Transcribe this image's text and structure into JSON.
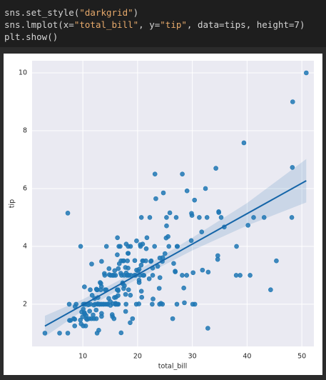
{
  "code": [
    [
      "sns.set_style(",
      "\"darkgrid\"",
      ")"
    ],
    [
      "sns.lmplot(x=",
      "\"total_bill\"",
      ", y=",
      "\"tip\"",
      ", data=tips, height=7)"
    ],
    [
      "plt.show()"
    ]
  ],
  "chart_data": {
    "type": "scatter",
    "xlabel": "total_bill",
    "ylabel": "tip",
    "color": "#1f77b4",
    "grid": true,
    "xlim": [
      0.73,
      52.2
    ],
    "ylim": [
      0.54,
      10.42
    ],
    "xticks": [
      10,
      20,
      30,
      40,
      50
    ],
    "yticks": [
      2,
      4,
      6,
      8,
      10
    ],
    "x": [
      16.99,
      10.34,
      21.01,
      23.68,
      24.59,
      25.29,
      8.77,
      26.88,
      15.04,
      14.78,
      10.27,
      35.26,
      15.42,
      18.43,
      14.83,
      21.58,
      10.33,
      16.29,
      16.97,
      20.65,
      17.92,
      20.29,
      15.77,
      39.42,
      19.82,
      17.81,
      13.37,
      12.69,
      21.7,
      19.65,
      9.55,
      18.35,
      15.06,
      20.69,
      17.78,
      24.06,
      16.31,
      16.93,
      18.69,
      31.27,
      16.04,
      17.46,
      13.94,
      9.68,
      30.4,
      18.29,
      22.23,
      32.4,
      28.55,
      18.04,
      12.54,
      10.29,
      34.81,
      9.94,
      25.56,
      19.49,
      38.01,
      26.41,
      11.24,
      48.27,
      20.29,
      13.81,
      11.02,
      18.29,
      17.59,
      20.08,
      16.45,
      3.07,
      20.23,
      15.01,
      12.02,
      17.07,
      26.86,
      25.28,
      14.73,
      10.51,
      17.92,
      27.2,
      22.76,
      17.29,
      19.44,
      16.66,
      10.07,
      32.68,
      15.98,
      34.83,
      13.03,
      18.28,
      24.71,
      21.16,
      28.97,
      22.49,
      5.75,
      16.32,
      22.75,
      40.17,
      27.28,
      12.03,
      21.01,
      12.46,
      11.35,
      15.38,
      44.3,
      22.42,
      20.92,
      15.36,
      20.49,
      25.21,
      18.24,
      14.31,
      14.0,
      7.25,
      38.07,
      23.95,
      25.71,
      17.31,
      29.93,
      10.65,
      12.43,
      24.08,
      11.69,
      13.42,
      14.26,
      15.95,
      12.48,
      29.8,
      8.52,
      14.52,
      11.38,
      22.82,
      19.08,
      20.27,
      11.17,
      12.26,
      18.26,
      8.51,
      10.33,
      14.15,
      16.0,
      13.16,
      17.47,
      34.3,
      41.19,
      27.05,
      16.43,
      8.35,
      18.64,
      11.87,
      9.78,
      7.51,
      14.07,
      13.13,
      17.26,
      24.55,
      19.77,
      29.85,
      48.17,
      25.0,
      13.39,
      16.49,
      21.5,
      12.66,
      16.21,
      13.81,
      17.51,
      24.52,
      20.76,
      31.71,
      10.59,
      10.63,
      50.81,
      15.81,
      7.25,
      31.85,
      16.82,
      32.9,
      17.89,
      14.48,
      9.6,
      34.63,
      34.65,
      23.33,
      45.35,
      23.17,
      40.55,
      20.69,
      20.9,
      30.46,
      18.15,
      23.1,
      15.69,
      19.81,
      28.44,
      15.48,
      16.58,
      7.56,
      10.34,
      43.11,
      13.0,
      13.51,
      18.71,
      12.74,
      13.0,
      16.4,
      20.53,
      16.47,
      26.59,
      38.73,
      24.27,
      12.76,
      30.06,
      25.89,
      48.33,
      13.27,
      28.17,
      12.9,
      28.15,
      11.59,
      7.74,
      30.14,
      12.16,
      13.42,
      8.58,
      15.98,
      13.42,
      16.27,
      10.09,
      20.45,
      13.28,
      22.12,
      24.01,
      15.69,
      11.61,
      10.77,
      15.53,
      10.07,
      12.6,
      32.83,
      35.83,
      29.03,
      27.18,
      22.67,
      17.82,
      18.78
    ],
    "y": [
      1.01,
      1.66,
      3.5,
      3.31,
      3.61,
      4.71,
      2.0,
      3.12,
      1.96,
      3.23,
      1.71,
      5.0,
      1.57,
      3.0,
      3.02,
      3.92,
      1.67,
      3.71,
      3.5,
      3.35,
      4.08,
      2.75,
      2.23,
      7.58,
      3.18,
      2.34,
      2.0,
      2.0,
      4.3,
      3.0,
      1.45,
      2.5,
      3.0,
      2.45,
      3.27,
      3.6,
      2.0,
      3.07,
      2.31,
      5.0,
      2.24,
      2.54,
      3.06,
      1.32,
      5.6,
      3.0,
      5.0,
      6.0,
      2.05,
      3.0,
      2.5,
      2.6,
      5.2,
      1.56,
      4.34,
      3.51,
      3.0,
      1.5,
      1.76,
      6.73,
      3.21,
      2.0,
      1.98,
      3.76,
      2.64,
      3.15,
      2.47,
      1.0,
      2.01,
      2.09,
      1.97,
      3.0,
      3.14,
      5.0,
      2.2,
      1.25,
      3.08,
      4.0,
      3.0,
      2.71,
      3.0,
      3.4,
      1.83,
      5.0,
      2.03,
      5.17,
      2.0,
      4.0,
      5.85,
      3.0,
      3.0,
      3.5,
      1.0,
      4.3,
      3.25,
      4.73,
      4.0,
      1.5,
      3.0,
      1.5,
      2.5,
      3.0,
      2.5,
      3.48,
      4.08,
      1.64,
      4.06,
      4.29,
      3.76,
      4.0,
      3.0,
      1.0,
      4.0,
      2.55,
      4.0,
      3.5,
      5.07,
      1.5,
      1.8,
      2.92,
      2.31,
      1.68,
      2.5,
      2.0,
      2.52,
      4.2,
      1.48,
      2.0,
      2.0,
      2.18,
      1.5,
      2.83,
      1.5,
      2.0,
      3.25,
      1.25,
      2.0,
      2.0,
      2.0,
      2.75,
      3.5,
      6.7,
      5.0,
      5.0,
      2.3,
      1.5,
      1.36,
      1.63,
      1.73,
      2.0,
      2.5,
      2.0,
      2.74,
      2.0,
      2.0,
      5.14,
      5.0,
      3.75,
      2.61,
      2.0,
      3.5,
      2.5,
      2.0,
      2.0,
      3.0,
      3.48,
      2.24,
      4.5,
      1.61,
      2.0,
      10.0,
      3.16,
      5.15,
      3.18,
      4.0,
      3.11,
      2.0,
      2.0,
      4.0,
      3.55,
      3.68,
      5.65,
      3.5,
      6.5,
      3.0,
      5.0,
      3.5,
      2.0,
      3.5,
      4.0,
      1.5,
      4.19,
      2.56,
      2.02,
      4.0,
      1.44,
      2.0,
      5.0,
      2.0,
      2.0,
      4.0,
      2.01,
      2.0,
      2.5,
      4.0,
      3.23,
      3.41,
      3.0,
      2.03,
      2.23,
      2.0,
      5.16,
      9.0,
      2.5,
      6.5,
      1.1,
      3.0,
      1.5,
      1.44,
      3.09,
      2.2,
      3.48,
      1.92,
      3.0,
      1.58,
      2.5,
      2.0,
      3.0,
      2.72,
      2.88,
      2.0,
      3.0,
      3.39,
      1.47,
      3.0,
      1.25,
      1.0,
      1.17,
      4.67,
      5.92,
      2.0,
      2.0,
      1.75,
      3.0
    ],
    "regression": {
      "color": "#1565a8",
      "x": [
        3.07,
        50.81
      ],
      "y": [
        1.243,
        6.27
      ]
    },
    "ci": {
      "x": [
        3.07,
        10,
        20,
        30,
        40,
        50.81
      ],
      "lower": [
        0.88,
        1.78,
        2.88,
        3.86,
        4.72,
        5.52
      ],
      "upper": [
        1.6,
        2.17,
        3.16,
        4.3,
        5.5,
        7.02
      ]
    }
  }
}
